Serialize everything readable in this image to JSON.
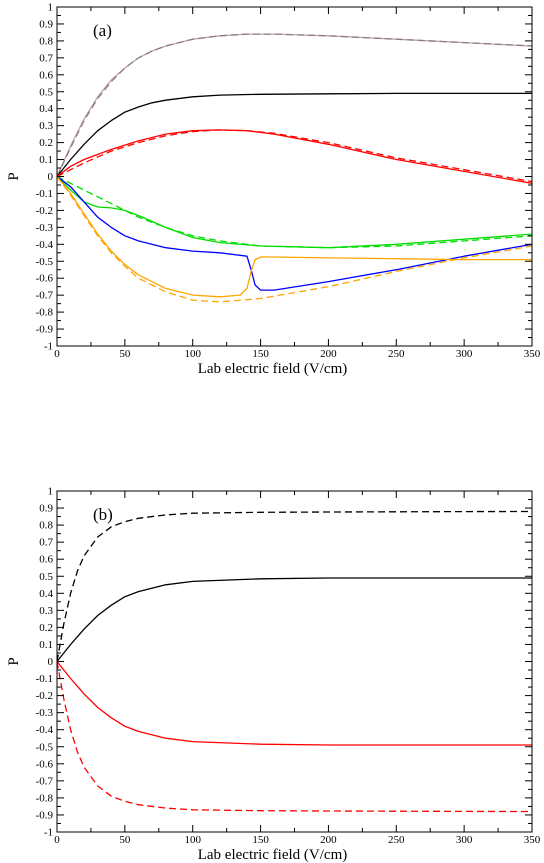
{
  "chart_data": [
    {
      "type": "line",
      "panel_label": "(a)",
      "xlabel": "Lab electric field (V/cm)",
      "ylabel": "P",
      "xlim": [
        0,
        350
      ],
      "ylim": [
        -1,
        1
      ],
      "x_ticks": [
        0,
        50,
        100,
        150,
        200,
        250,
        300,
        350
      ],
      "y_ticks": [
        -1,
        -0.9,
        -0.8,
        -0.7,
        -0.6,
        -0.5,
        -0.4,
        -0.3,
        -0.2,
        -0.1,
        0,
        0.1,
        0.2,
        0.3,
        0.4,
        0.5,
        0.6,
        0.7,
        0.8,
        0.9,
        1
      ],
      "grid": false,
      "series": [
        {
          "color": "#c8a0a0",
          "dash": "solid",
          "x": [
            0,
            10,
            20,
            30,
            40,
            50,
            60,
            70,
            80,
            100,
            120,
            140,
            160,
            180,
            200,
            250,
            300,
            350
          ],
          "y": [
            0,
            0.18,
            0.34,
            0.47,
            0.57,
            0.64,
            0.7,
            0.74,
            0.77,
            0.81,
            0.83,
            0.84,
            0.84,
            0.835,
            0.83,
            0.81,
            0.79,
            0.77
          ]
        },
        {
          "color": "#808080",
          "dash": "dashed",
          "x": [
            0,
            10,
            20,
            30,
            40,
            50,
            60,
            70,
            80,
            100,
            120,
            140,
            160,
            180,
            200,
            250,
            300,
            350
          ],
          "y": [
            0,
            0.17,
            0.33,
            0.46,
            0.56,
            0.64,
            0.7,
            0.74,
            0.77,
            0.81,
            0.83,
            0.84,
            0.84,
            0.835,
            0.83,
            0.81,
            0.79,
            0.77
          ]
        },
        {
          "color": "#000000",
          "dash": "solid",
          "x": [
            0,
            10,
            20,
            30,
            40,
            50,
            60,
            70,
            80,
            100,
            120,
            150,
            200,
            250,
            300,
            350
          ],
          "y": [
            0,
            0.1,
            0.19,
            0.27,
            0.33,
            0.38,
            0.41,
            0.435,
            0.45,
            0.47,
            0.48,
            0.485,
            0.488,
            0.49,
            0.49,
            0.49
          ]
        },
        {
          "color": "#ff0000",
          "dash": "solid",
          "x": [
            0,
            10,
            20,
            40,
            60,
            80,
            100,
            120,
            140,
            160,
            200,
            250,
            300,
            350
          ],
          "y": [
            0,
            0.06,
            0.1,
            0.16,
            0.21,
            0.25,
            0.27,
            0.275,
            0.27,
            0.25,
            0.19,
            0.1,
            0.03,
            -0.04
          ]
        },
        {
          "color": "#ff0000",
          "dash": "dashed",
          "x": [
            0,
            10,
            20,
            40,
            60,
            80,
            100,
            120,
            140,
            160,
            200,
            250,
            300,
            350
          ],
          "y": [
            0,
            0.04,
            0.08,
            0.15,
            0.2,
            0.24,
            0.265,
            0.275,
            0.27,
            0.255,
            0.2,
            0.11,
            0.04,
            -0.03
          ]
        },
        {
          "color": "#00dd00",
          "dash": "solid",
          "x": [
            0,
            10,
            20,
            30,
            40,
            50,
            60,
            80,
            100,
            120,
            150,
            200,
            250,
            300,
            350
          ],
          "y": [
            0,
            -0.08,
            -0.15,
            -0.18,
            -0.185,
            -0.2,
            -0.23,
            -0.3,
            -0.36,
            -0.39,
            -0.41,
            -0.42,
            -0.4,
            -0.37,
            -0.34
          ]
        },
        {
          "color": "#00dd00",
          "dash": "dashed",
          "x": [
            0,
            10,
            20,
            30,
            40,
            50,
            60,
            80,
            100,
            120,
            150,
            200,
            250,
            300,
            350
          ],
          "y": [
            0,
            -0.04,
            -0.08,
            -0.12,
            -0.16,
            -0.2,
            -0.24,
            -0.3,
            -0.35,
            -0.38,
            -0.41,
            -0.42,
            -0.41,
            -0.38,
            -0.35
          ]
        },
        {
          "color": "#0000ff",
          "dash": "solid",
          "x": [
            0,
            10,
            20,
            30,
            40,
            50,
            60,
            80,
            100,
            120,
            140,
            143,
            146,
            150,
            160,
            200,
            250,
            300,
            350
          ],
          "y": [
            0,
            -0.06,
            -0.15,
            -0.24,
            -0.3,
            -0.35,
            -0.38,
            -0.42,
            -0.44,
            -0.45,
            -0.47,
            -0.55,
            -0.64,
            -0.67,
            -0.67,
            -0.62,
            -0.55,
            -0.47,
            -0.4
          ]
        },
        {
          "color": "#ffa500",
          "dash": "solid",
          "x": [
            0,
            10,
            20,
            30,
            40,
            50,
            60,
            80,
            100,
            120,
            135,
            140,
            143,
            146,
            150,
            160,
            200,
            250,
            300,
            350
          ],
          "y": [
            0,
            -0.1,
            -0.22,
            -0.34,
            -0.44,
            -0.52,
            -0.58,
            -0.66,
            -0.7,
            -0.71,
            -0.7,
            -0.66,
            -0.56,
            -0.49,
            -0.475,
            -0.475,
            -0.48,
            -0.485,
            -0.49,
            -0.49
          ]
        },
        {
          "color": "#ffa500",
          "dash": "dashed",
          "x": [
            0,
            10,
            20,
            30,
            40,
            50,
            60,
            80,
            100,
            120,
            150,
            200,
            250,
            300,
            350
          ],
          "y": [
            0,
            -0.11,
            -0.23,
            -0.35,
            -0.45,
            -0.53,
            -0.6,
            -0.68,
            -0.73,
            -0.74,
            -0.72,
            -0.65,
            -0.56,
            -0.48,
            -0.41
          ]
        }
      ]
    },
    {
      "type": "line",
      "panel_label": "(b)",
      "xlabel": "Lab electric field (V/cm)",
      "ylabel": "P",
      "xlim": [
        0,
        350
      ],
      "ylim": [
        -1,
        1
      ],
      "x_ticks": [
        0,
        50,
        100,
        150,
        200,
        250,
        300,
        350
      ],
      "y_ticks": [
        -1,
        -0.9,
        -0.8,
        -0.7,
        -0.6,
        -0.5,
        -0.4,
        -0.3,
        -0.2,
        -0.1,
        0,
        0.1,
        0.2,
        0.3,
        0.4,
        0.5,
        0.6,
        0.7,
        0.8,
        0.9,
        1
      ],
      "grid": false,
      "series": [
        {
          "color": "#000000",
          "dash": "dashed",
          "x": [
            0,
            5,
            10,
            15,
            20,
            30,
            40,
            50,
            60,
            80,
            100,
            150,
            200,
            250,
            300,
            350
          ],
          "y": [
            0,
            0.22,
            0.4,
            0.53,
            0.62,
            0.73,
            0.79,
            0.82,
            0.84,
            0.86,
            0.87,
            0.875,
            0.877,
            0.878,
            0.879,
            0.88
          ]
        },
        {
          "color": "#000000",
          "dash": "solid",
          "x": [
            0,
            10,
            20,
            30,
            40,
            50,
            60,
            80,
            100,
            150,
            200,
            250,
            300,
            350
          ],
          "y": [
            0,
            0.1,
            0.19,
            0.27,
            0.33,
            0.38,
            0.41,
            0.45,
            0.47,
            0.485,
            0.49,
            0.49,
            0.49,
            0.49
          ]
        },
        {
          "color": "#ff0000",
          "dash": "solid",
          "x": [
            0,
            10,
            20,
            30,
            40,
            50,
            60,
            80,
            100,
            150,
            200,
            250,
            300,
            350
          ],
          "y": [
            0,
            -0.1,
            -0.19,
            -0.27,
            -0.33,
            -0.38,
            -0.41,
            -0.45,
            -0.47,
            -0.485,
            -0.49,
            -0.49,
            -0.49,
            -0.49
          ]
        },
        {
          "color": "#ff0000",
          "dash": "dashed",
          "x": [
            0,
            5,
            10,
            15,
            20,
            30,
            40,
            50,
            60,
            80,
            100,
            150,
            200,
            250,
            300,
            350
          ],
          "y": [
            0,
            -0.22,
            -0.4,
            -0.53,
            -0.62,
            -0.73,
            -0.79,
            -0.82,
            -0.84,
            -0.86,
            -0.87,
            -0.875,
            -0.877,
            -0.878,
            -0.879,
            -0.88
          ]
        }
      ]
    }
  ]
}
